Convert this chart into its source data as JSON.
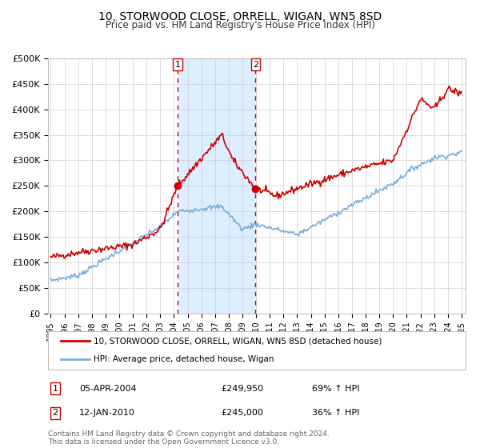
{
  "title": "10, STORWOOD CLOSE, ORRELL, WIGAN, WN5 8SD",
  "subtitle": "Price paid vs. HM Land Registry's House Price Index (HPI)",
  "ylabel_ticks": [
    "£0",
    "£50K",
    "£100K",
    "£150K",
    "£200K",
    "£250K",
    "£300K",
    "£350K",
    "£400K",
    "£450K",
    "£500K"
  ],
  "ytick_values": [
    0,
    50000,
    100000,
    150000,
    200000,
    250000,
    300000,
    350000,
    400000,
    450000,
    500000
  ],
  "xlim_start": 1994.8,
  "xlim_end": 2025.3,
  "ylim": [
    0,
    500000
  ],
  "sale1": {
    "date_num": 2004.27,
    "price": 249950,
    "label": "1",
    "text": "05-APR-2004",
    "hpi_pct": "69% ↑ HPI"
  },
  "sale2": {
    "date_num": 2009.96,
    "price": 245000,
    "label": "2",
    "text": "12-JAN-2010",
    "hpi_pct": "36% ↑ HPI"
  },
  "legend_line1": "10, STORWOOD CLOSE, ORRELL, WIGAN, WN5 8SD (detached house)",
  "legend_line2": "HPI: Average price, detached house, Wigan",
  "footer": "Contains HM Land Registry data © Crown copyright and database right 2024.\nThis data is licensed under the Open Government Licence v3.0.",
  "red_color": "#cc0000",
  "blue_color": "#7aaddc",
  "shade_color": "#ddeeff",
  "background_color": "#ffffff",
  "grid_color": "#cccccc",
  "red_seed": 42,
  "blue_seed": 7
}
